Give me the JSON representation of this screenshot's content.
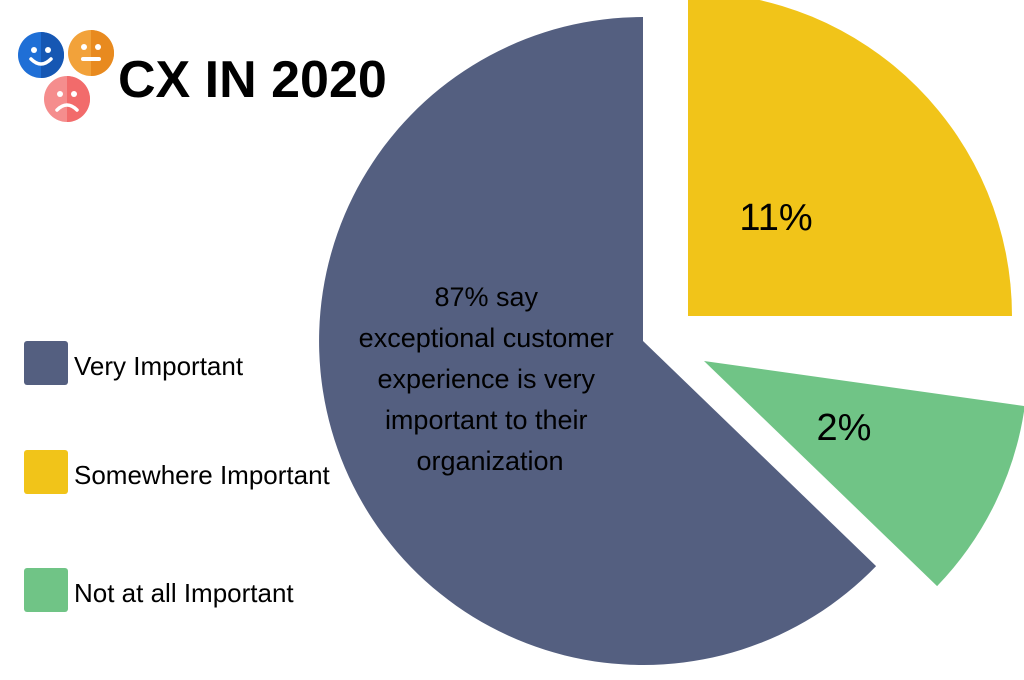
{
  "title": "CX IN 2020",
  "icons": [
    "happy-face-icon",
    "neutral-face-icon",
    "sad-face-icon"
  ],
  "icon_colors": {
    "happy": "#1f6fd6",
    "neutral": "#f2a23a",
    "sad": "#f26b6b"
  },
  "legend": [
    {
      "label": "Very Important",
      "color": "#545f80"
    },
    {
      "label": "Somewhere Important",
      "color": "#f1c419"
    },
    {
      "label": "Not at all Important",
      "color": "#70c486"
    }
  ],
  "chart_data": {
    "type": "pie",
    "slices": [
      {
        "name": "Very Important",
        "value": 87,
        "color": "#545f80",
        "label_lines": [
          "87% say",
          "exceptional customer",
          "experience is very",
          "important to their",
          "organization"
        ]
      },
      {
        "name": "Somewhere Important",
        "value": 11,
        "color": "#f1c419",
        "label_lines": [
          "11%"
        ]
      },
      {
        "name": "Not at all Important",
        "value": 2,
        "color": "#70c486",
        "label_lines": [
          "2%"
        ]
      }
    ],
    "legend_position": "left",
    "exploded": true
  }
}
